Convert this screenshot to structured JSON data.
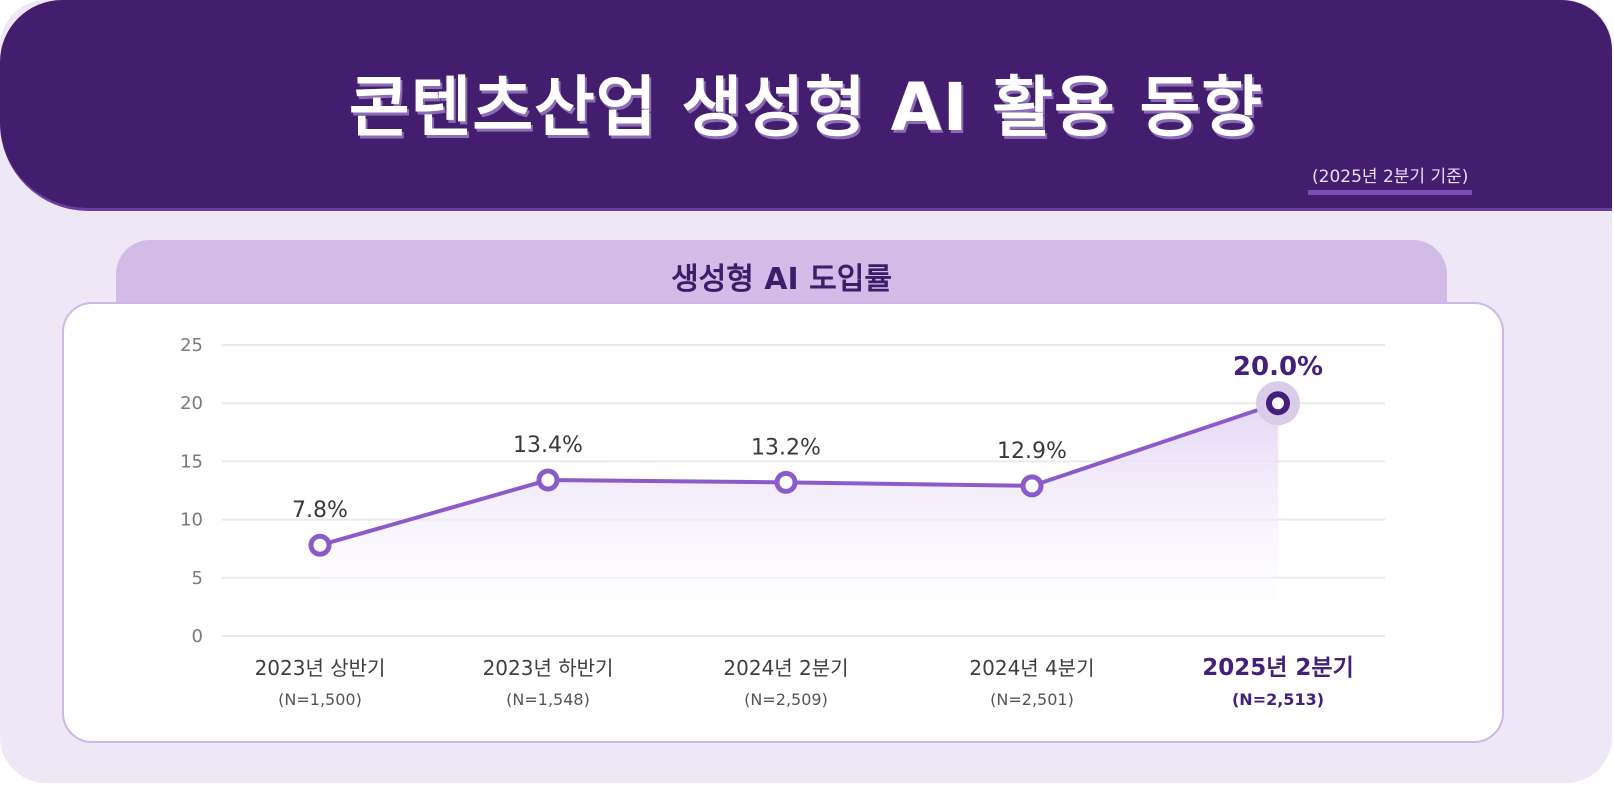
{
  "header": {
    "title": "콘텐츠산업 생성형 AI 활용 동향",
    "subtitle": "(2025년 2분기 기준)"
  },
  "colors": {
    "header_bg": "#441E6E",
    "page_bg": "#EEE7F6",
    "tab_bg": "#D2BCE7",
    "line": "#8B5CC9",
    "highlight": "#44207A"
  },
  "chart_data": {
    "type": "line",
    "title": "생성형 AI 도입률",
    "xlabel": "",
    "ylabel": "",
    "ylim": [
      0,
      25
    ],
    "yticks": [
      0,
      5,
      10,
      15,
      20,
      25
    ],
    "grid": true,
    "categories": [
      "2023년 상반기",
      "2023년 하반기",
      "2024년 2분기",
      "2024년 4분기",
      "2025년 2분기"
    ],
    "sample_sizes": [
      "(N=1,500)",
      "(N=1,548)",
      "(N=2,509)",
      "(N=2,501)",
      "(N=2,513)"
    ],
    "series": [
      {
        "name": "생성형 AI 도입률",
        "values": [
          7.8,
          13.4,
          13.2,
          12.9,
          20.0
        ],
        "labels": [
          "7.8%",
          "13.4%",
          "13.2%",
          "12.9%",
          "20.0%"
        ]
      }
    ],
    "highlight_index": 4
  }
}
